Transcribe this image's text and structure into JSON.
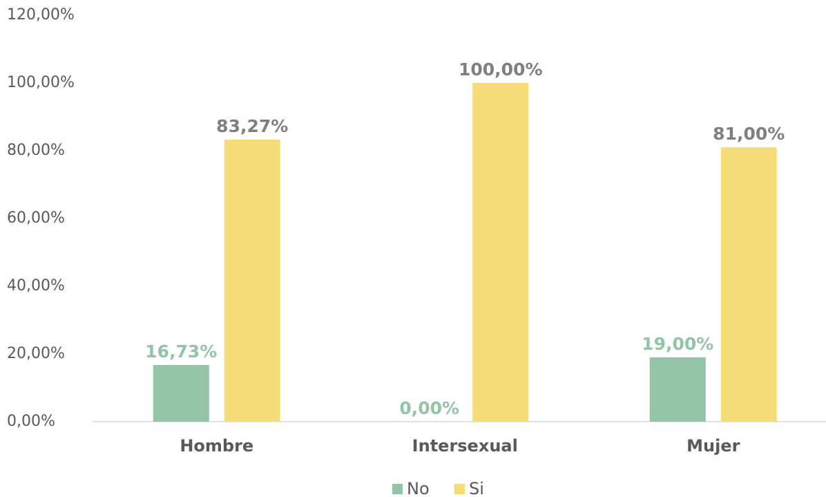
{
  "chart_data": {
    "type": "bar",
    "categories": [
      "Hombre",
      "Intersexual",
      "Mujer"
    ],
    "series": [
      {
        "name": "No",
        "color": "#93c4a5",
        "values": [
          16.73,
          0,
          19
        ],
        "value_labels": [
          "16,73%",
          "0,00%",
          "19,00%"
        ]
      },
      {
        "name": "Si",
        "color": "#f5dc78",
        "values": [
          83.27,
          100,
          81
        ],
        "value_labels": [
          "83,27%",
          "100,00%",
          "81,00%"
        ]
      }
    ],
    "ylim": [
      0,
      120
    ],
    "yticks": [
      {
        "value": 0,
        "label": "0,00%"
      },
      {
        "value": 20,
        "label": "20,00%"
      },
      {
        "value": 40,
        "label": "40,00%"
      },
      {
        "value": 60,
        "label": "60,00%"
      },
      {
        "value": 80,
        "label": "80,00%"
      },
      {
        "value": 100,
        "label": "100,00%"
      },
      {
        "value": 120,
        "label": "120,00%"
      }
    ],
    "grid": false,
    "legend": "bottom"
  }
}
